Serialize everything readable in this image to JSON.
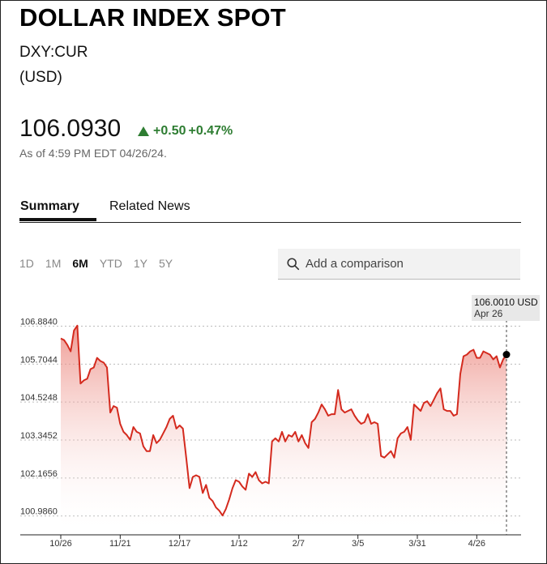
{
  "header": {
    "title": "DOLLAR INDEX SPOT",
    "ticker": "DXY:CUR",
    "currency": "(USD)",
    "price": "106.0930",
    "change_abs": "+0.50",
    "change_pct": "+0.47%",
    "as_of": "As of 4:59 PM EDT 04/26/24."
  },
  "tabs": [
    {
      "label": "Summary",
      "active": true
    },
    {
      "label": "Related News",
      "active": false
    }
  ],
  "ranges": [
    {
      "label": "1D",
      "active": false
    },
    {
      "label": "1M",
      "active": false
    },
    {
      "label": "6M",
      "active": true
    },
    {
      "label": "YTD",
      "active": false
    },
    {
      "label": "1Y",
      "active": false
    },
    {
      "label": "5Y",
      "active": false
    }
  ],
  "compare": {
    "placeholder": "Add a comparison"
  },
  "colors": {
    "line": "#d42a1e",
    "positive": "#2e7d32"
  },
  "chart_data": {
    "type": "area",
    "title": "",
    "xlabel": "",
    "ylabel": "",
    "ylim": [
      100.4,
      107.45
    ],
    "yticks": [
      100.986,
      102.1656,
      103.3452,
      104.5248,
      105.7044,
      106.884
    ],
    "ytick_labels": [
      "100.9860",
      "102.1656",
      "103.3452",
      "104.5248",
      "105.7044",
      "106.8840"
    ],
    "xticks": [
      {
        "label": "10/26",
        "index": 0
      },
      {
        "label": "11/21",
        "index": 18
      },
      {
        "label": "12/17",
        "index": 36
      },
      {
        "label": "1/12",
        "index": 54
      },
      {
        "label": "2/7",
        "index": 72
      },
      {
        "label": "3/5",
        "index": 90
      },
      {
        "label": "3/31",
        "index": 108
      },
      {
        "label": "4/26",
        "index": 126
      }
    ],
    "grid": true,
    "legend": "none",
    "series": [
      {
        "values": [
          106.5,
          106.45,
          106.3,
          106.1,
          106.75,
          106.9,
          105.1,
          105.2,
          105.25,
          105.55,
          105.6,
          105.9,
          105.8,
          105.75,
          105.6,
          104.2,
          104.4,
          104.35,
          103.85,
          103.6,
          103.5,
          103.35,
          103.75,
          103.6,
          103.55,
          103.15,
          103.0,
          103.0,
          103.5,
          103.25,
          103.35,
          103.55,
          103.75,
          104.0,
          104.1,
          103.7,
          103.8,
          103.7,
          102.8,
          101.85,
          102.2,
          102.25,
          102.2,
          101.7,
          101.95,
          101.55,
          101.45,
          101.25,
          101.15,
          101.0,
          101.2,
          101.5,
          101.85,
          102.1,
          102.05,
          101.9,
          101.8,
          102.3,
          102.2,
          102.35,
          102.1,
          102.0,
          102.05,
          102.0,
          103.3,
          103.4,
          103.3,
          103.6,
          103.3,
          103.5,
          103.45,
          103.6,
          103.3,
          103.5,
          103.25,
          103.1,
          103.9,
          104.0,
          104.2,
          104.45,
          104.3,
          104.1,
          104.15,
          104.15,
          104.9,
          104.3,
          104.2,
          104.25,
          104.3,
          104.1,
          103.95,
          103.85,
          103.9,
          104.15,
          103.85,
          103.9,
          103.85,
          102.85,
          102.8,
          102.9,
          103.0,
          102.8,
          103.4,
          103.55,
          103.6,
          103.75,
          103.35,
          104.45,
          104.35,
          104.25,
          104.5,
          104.55,
          104.4,
          104.6,
          104.8,
          104.95,
          104.3,
          104.25,
          104.25,
          104.1,
          104.15,
          105.4,
          105.95,
          106.0,
          106.1,
          106.15,
          105.9,
          105.9,
          106.1,
          106.05,
          106.0,
          105.85,
          105.95,
          105.6,
          105.85,
          106.001
        ],
        "color": "#d42a1e"
      }
    ],
    "tooltip": {
      "value_label": "106.0010 USD",
      "date_label": "Apr 26"
    }
  }
}
